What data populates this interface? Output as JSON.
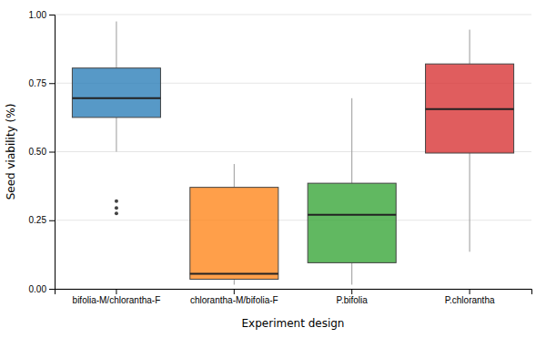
{
  "chart_data": {
    "type": "box",
    "categories": [
      "bifolia-M/chlorantha-F",
      "chlorantha-M/bifolia-F",
      "P.bifolia",
      "P.chlorantha"
    ],
    "boxes": [
      {
        "q1": 0.625,
        "median": 0.695,
        "q3": 0.805,
        "whisker_low": 0.5,
        "whisker_high": 0.975,
        "fliers": [
          0.32,
          0.295,
          0.275
        ]
      },
      {
        "q1": 0.035,
        "median": 0.055,
        "q3": 0.37,
        "whisker_low": 0.015,
        "whisker_high": 0.455,
        "fliers": []
      },
      {
        "q1": 0.095,
        "median": 0.27,
        "q3": 0.385,
        "whisker_low": 0.015,
        "whisker_high": 0.695,
        "fliers": []
      },
      {
        "q1": 0.495,
        "median": 0.655,
        "q3": 0.82,
        "whisker_low": 0.135,
        "whisker_high": 0.945,
        "fliers": []
      }
    ],
    "xlabel": "Experiment design",
    "ylabel": "Seed viability (%)",
    "ylim": [
      0.0,
      1.0
    ],
    "yticks": [
      {
        "value": 0.0,
        "label": "0.00"
      },
      0.25,
      {
        "value": 0.5,
        "label": "0.50"
      },
      0.75,
      {
        "value": 1.0,
        "label": "1.00"
      }
    ],
    "grid": true
  }
}
